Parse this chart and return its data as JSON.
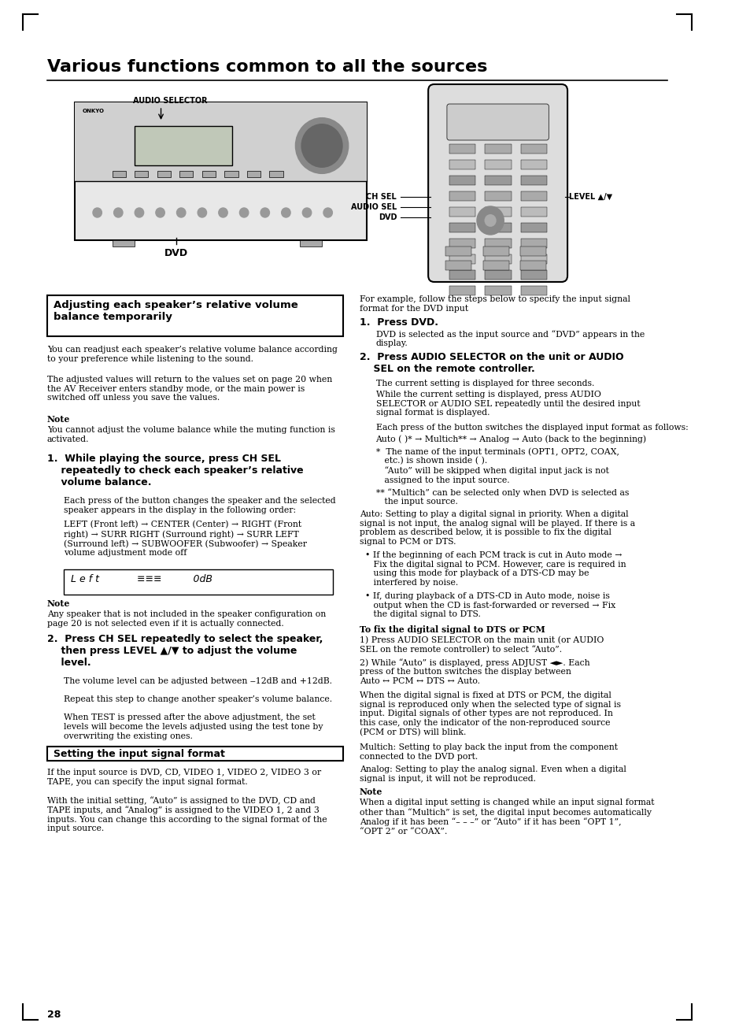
{
  "title": "Various functions common to all the sources",
  "page_bg": "#ffffff",
  "text_color": "#000000",
  "page_number": "28",
  "corner_marks": true,
  "left_column": {
    "box1_title": "Adjusting each speaker’s relative volume\nbalance temporarily",
    "box1_body": "You can readjust each speaker’s relative volume balance according\nto your preference while listening to the sound.\n\nThe adjusted values will return to the values set on page 20 when\nthe AV Receiver enters standby mode, or the main power is\nswitched off unless you save the values.\n\nNote\n\nYou cannot adjust the volume balance while the muting function is\nactivated.",
    "step1_head": "1.  While playing the source, press CH SEL\n    repeatedly to check each speaker’s relative\n    volume balance.",
    "step1_body": "Each press of the button changes the speaker and the selected\nspeaker appears in the display in the following order:\n\nLEFT (Front left) → CENTER (Center) → RIGHT (Front\nright) → SURR RIGHT (Surround right) → SURR LEFT\n(Surround left) → SUBWOOFER (Subwoofer) → Speaker\nvolume adjustment mode off",
    "display_text": "Left            ≡≡≡          0dB",
    "note2": "Note\n\nAny speaker that is not included in the speaker configuration on\npage 20 is not selected even if it is actually connected.",
    "step2_head": "2.  Press CH SEL repeatedly to select the speaker,\n    then press LEVEL ▲/▼ to adjust the volume\n    level.",
    "step2_body": "The volume level can be adjusted between −12dB and +12dB.\n\nRepeat this step to change another speaker’s volume balance.\n\nWhen TEST is pressed after the above adjustment, the set\nlevels will become the levels adjusted using the test tone by\noverwriting the existing ones.",
    "box2_title": "Setting the input signal format",
    "box2_body": "If the input source is DVD, CD, VIDEO 1, VIDEO 2, VIDEO 3 or\nTAPE, you can specify the input signal format.\n\nWith the initial setting, “Auto” is assigned to the DVD, CD and\nTAPE inputs, and “Analog” is assigned to the VIDEO 1, 2 and 3\ninputs. You can change this according to the signal format of the\ninput source.",
    "page_num_text": "28"
  },
  "right_column": {
    "intro": "For example, follow the steps below to specify the input signal\nformat for the DVD input",
    "step1_head": "1.  Press DVD.",
    "step1_body": "DVD is selected as the input source and “DVD” appears in the\ndisplay.",
    "step2_head": "2.  Press AUDIO SELECTOR on the unit or AUDIO\n    SEL on the remote controller.",
    "step2_body": "The current setting is displayed for three seconds.\n\nWhile the current setting is displayed, press AUDIO\nSELECTOR or AUDIO SEL repeatedly until the desired input\nsignal format is displayed.\n\nEach press of the button switches the displayed input format as follows:\n\nAuto ( )* → Multich** → Analog → Auto (back to the beginning)\n\n*  The name of the input terminals (OPT1, OPT2, COAX,\n   etc.) is shown inside ( ).\n   “Auto” will be skipped when digital input jack is not\n   assigned to the input source.\n\n** “Multich” can be selected only when DVD is selected as\n   the input source.\n\nAuto: Setting to play a digital signal in priority. When a digital\nsignal is not input, the analog signal will be played. If there is a\nproblem as described below, it is possible to fix the digital\nsignal to PCM or DTS.\n\n• If the beginning of each PCM track is cut in Auto mode →\n   Fix the digital signal to PCM. However, care is required in\n   using this mode for playback of a DTS-CD may be\n   interfered by noise.\n\n• If, during playback of a DTS-CD in Auto mode, noise is\n   output when the CD is fast-forwarded or reversed → Fix\n   the digital signal to DTS.\n\nTo fix the digital signal to DTS or PCM\n\n1) Press AUDIO SELECTOR on the main unit (or AUDIO\nSEL on the remote controller) to select “Auto”.\n\n2) While “Auto” is displayed, press ADJUST. Each\npress of the button switches the display between\nAuto ↔ PCM ↔ DTS ↔ Auto.\n\nWhen the digital signal is fixed at DTS or PCM, the digital\nsignal is reproduced only when the selected type of signal is\ninput. Digital signals of other types are not reproduced. In\nthis case, only the indicator of the non-reproduced source\n(PCM or DTS) will blink.\n\nMultich: Setting to play back the input from the component\nconnected to the DVD port.\n\nAnalog: Setting to play the analog signal. Even when a digital\nsignal is input, it will not be reproduced.\n\nNote\n\nWhen a digital input setting is changed while an input signal format\nother than “Multich” is set, the digital input becomes automatically\nAnalog if it has been “– – –” or “Auto” if it has been “OPT 1”,\n“OPT 2” or “COAX”."
  },
  "image_annotations": {
    "audio_selector_label": "AUDIO SELECTOR",
    "dvd_label": "DVD",
    "ch_sel_label": "CH SEL",
    "audio_sel_label": "AUDIO SEL",
    "dvd_right_label": "DVD",
    "level_label": "LEVEL ▲/▼"
  }
}
